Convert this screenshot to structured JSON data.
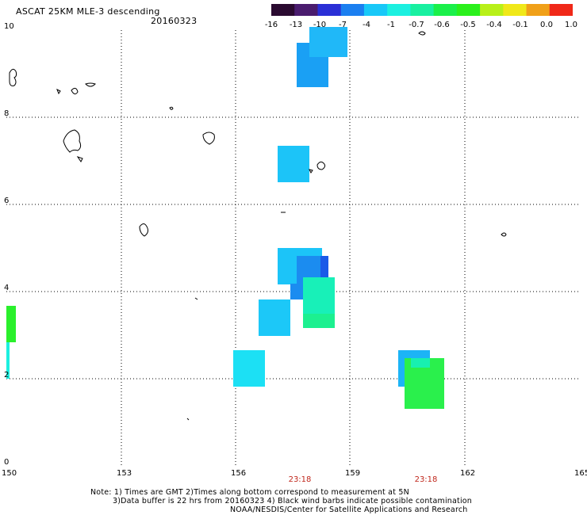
{
  "header": {
    "title": "ASCAT 25KM MLE-3 descending",
    "date": "20160323"
  },
  "legend": {
    "labels": [
      "-16",
      "-13",
      "-10",
      "-7",
      "-4",
      "-1",
      "-0.7",
      "-0.6",
      "-0.5",
      "-0.4",
      "-0.1",
      "0.0",
      "1.0"
    ],
    "colors": [
      "#2a0a30",
      "#4a1c6e",
      "#2a2fd6",
      "#1b7ff0",
      "#18c8f8",
      "#1cf0e0",
      "#18f0a0",
      "#1af04a",
      "#2af01c",
      "#b8f018",
      "#f0e818",
      "#f0a018",
      "#f02818"
    ]
  },
  "axes": {
    "x_labels": [
      "150",
      "153",
      "156",
      "159",
      "162",
      "165"
    ],
    "y_labels": [
      "0",
      "2",
      "4",
      "6",
      "8",
      "10"
    ],
    "lon_range": [
      150,
      165
    ],
    "lat_range": [
      0,
      10
    ]
  },
  "times": [
    "23:18",
    "23:18"
  ],
  "notes": {
    "line1": "Note: 1) Times are GMT 2)Times along bottom correspond to measurement at 5N",
    "line2": "3)Data buffer is 22 hrs from 20160323 4) Black wind barbs indicate possible contamination",
    "line3": "NOAA/NESDIS/Center for Satellite Applications and Research"
  }
}
